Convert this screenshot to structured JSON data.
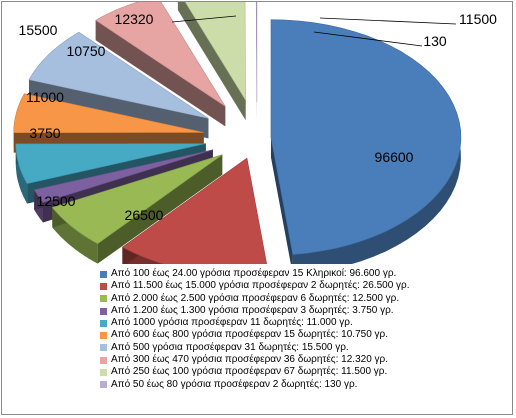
{
  "chart_data": {
    "type": "pie",
    "style": "3d-exploded",
    "legend_position": "bottom",
    "title": "",
    "slices": [
      {
        "label": "Από 100 έως 24.00 γρόσια προσέφεραν 15 Κληρικοί: 96.600 γρ.",
        "value": 96600,
        "data_label": "96600",
        "color": "#4a7ebb"
      },
      {
        "label": "Από 11.500 έως 15.000 γρόσια προσέφεραν 2 δωρητές: 26.500 γρ.",
        "value": 26500,
        "data_label": "26500",
        "color": "#be4b48"
      },
      {
        "label": "Από 2.000 έως 2.500 γρόσια προσέφεραν 6 δωρητές: 12.500 γρ.",
        "value": 12500,
        "data_label": "12500",
        "color": "#98b954"
      },
      {
        "label": "Από 1.200 έως 1.300 γρόσια προσέφεραν 3 δωρητές: 3.750 γρ.",
        "value": 3750,
        "data_label": "3750",
        "color": "#7d60a0"
      },
      {
        "label": "Από 1000 γρόσια προσέφεραν 11 δωρητές: 11.000 γρ.",
        "value": 11000,
        "data_label": "11000",
        "color": "#46aac5"
      },
      {
        "label": "Από 600 έως 800 γρόσια προσέφεραν 15 δωρητές: 10.750 γρ.",
        "value": 10750,
        "data_label": "10750",
        "color": "#f79646"
      },
      {
        "label": "Από 500 γρόσια προσέφεραν 31 δωρητές: 15.500 γρ.",
        "value": 15500,
        "data_label": "15500",
        "color": "#a7bfde"
      },
      {
        "label": "Από 300 έως 470 γρόσια προσέφεραν 36 δωρητές: 12.320 γρ.",
        "value": 12320,
        "data_label": "12320",
        "color": "#e6a4a3"
      },
      {
        "label": "Από 250 έως 100 γρόσια προσέφεραν 67 δωρητές: 11.500 γρ.",
        "value": 11500,
        "data_label": "11500",
        "color": "#cddda9"
      },
      {
        "label": "Από 50 έως 80 γρόσια προσέφεραν 2 δωρητές: 130 γρ.",
        "value": 130,
        "data_label": "130",
        "color": "#b9add0"
      }
    ]
  }
}
